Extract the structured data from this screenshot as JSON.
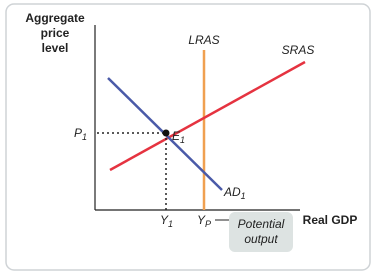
{
  "y_axis_label": [
    "Aggregate",
    "price",
    "level"
  ],
  "x_axis_label": "Real GDP",
  "curves": {
    "lras": "LRAS",
    "sras": "SRAS",
    "ad": {
      "text": "AD",
      "sub": "1"
    }
  },
  "equilibrium": {
    "text": "E",
    "sub": "1"
  },
  "price_label": {
    "text": "P",
    "sub": "1"
  },
  "output_label": {
    "text": "Y",
    "sub": "1"
  },
  "potential_label": {
    "text": "Y",
    "sub": "P"
  },
  "callout": [
    "Potential",
    "output"
  ]
}
